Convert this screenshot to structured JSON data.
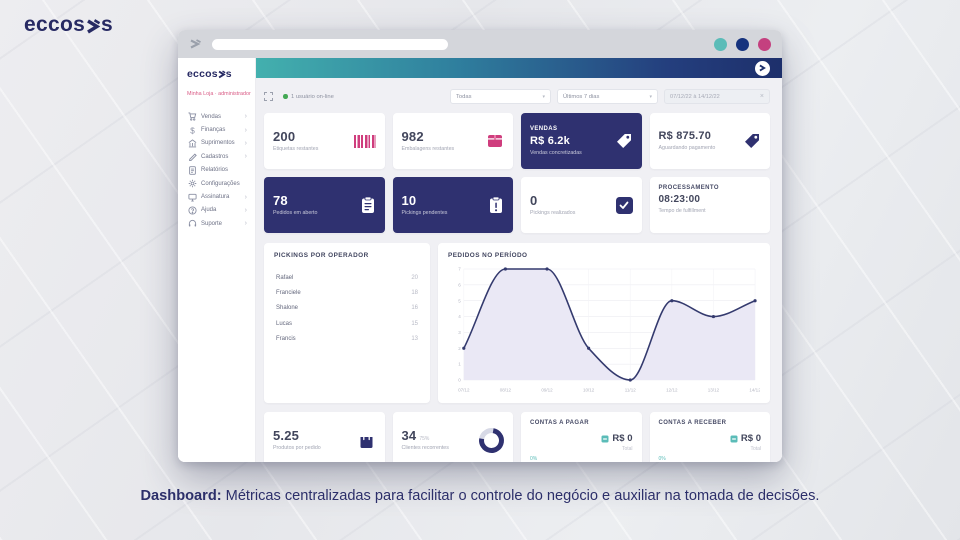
{
  "colors": {
    "navy": "#2f3170",
    "pink": "#cf3d7d",
    "teal": "#5bbcb8",
    "green_online": "#43a854",
    "caption_navy": "#2c2f6a",
    "header_gradient_start": "#43b0ae",
    "header_gradient_end": "#1d2f6b"
  },
  "page": {
    "brand": "eccosys",
    "logo_prefix": "eccos",
    "logo_suffix": "s",
    "caption_bold": "Dashboard:",
    "caption_rest": " Métricas centralizadas para facilitar o controle do negócio e auxiliar na tomada de decisões."
  },
  "browser": {
    "window_controls": [
      "teal",
      "navy",
      "pink"
    ]
  },
  "app": {
    "sidebar": {
      "logo_prefix": "eccos",
      "logo_suffix": "s",
      "account": "Minha Loja · administrador",
      "items": [
        {
          "id": "vendas",
          "label": "Vendas",
          "icon": "cart-icon",
          "chevron": true
        },
        {
          "id": "financas",
          "label": "Finanças",
          "icon": "dollar-icon",
          "chevron": true
        },
        {
          "id": "suprimentos",
          "label": "Suprimentos",
          "icon": "building-icon",
          "chevron": true
        },
        {
          "id": "cadastros",
          "label": "Cadastros",
          "icon": "pencil-icon",
          "chevron": true
        },
        {
          "id": "relatorios",
          "label": "Relatórios",
          "icon": "report-icon",
          "chevron": false
        },
        {
          "id": "configuracoes",
          "label": "Configurações",
          "icon": "gear-icon",
          "chevron": false
        },
        {
          "id": "assinatura",
          "label": "Assinatura",
          "icon": "monitor-icon",
          "chevron": true
        },
        {
          "id": "ajuda",
          "label": "Ajuda",
          "icon": "help-icon",
          "chevron": true
        },
        {
          "id": "suporte",
          "label": "Suporte",
          "icon": "headset-icon",
          "chevron": true
        }
      ]
    },
    "topbar": {
      "online_status": "1 usuário on-line",
      "filters": {
        "store": "Todas",
        "period": "Últimos 7 dias",
        "date_range": "07/12/22 à 14/12/22"
      }
    },
    "cards_row1": [
      {
        "value": "200",
        "label": "Etiquetas restantes"
      },
      {
        "value": "982",
        "label": "Embalagens restantes"
      },
      {
        "title": "VENDAS",
        "value": "R$ 6.2k",
        "label": "Vendas concretizadas"
      },
      {
        "value": "R$ 875.70",
        "label": "Aguardando pagamento"
      }
    ],
    "cards_row2": [
      {
        "value": "78",
        "label": "Pedidos em aberto"
      },
      {
        "value": "10",
        "label": "Pickings pendentes"
      },
      {
        "value": "0",
        "label": "Pickings realizados"
      },
      {
        "title": "PROCESSAMENTO",
        "value": "08:23:00",
        "label": "Tempo de fulfillment"
      }
    ],
    "pickings": {
      "title": "PICKINGS POR OPERADOR",
      "rows": [
        {
          "name": "Rafael",
          "value": "20"
        },
        {
          "name": "Franciele",
          "value": "18"
        },
        {
          "name": "Shalone",
          "value": "16"
        },
        {
          "name": "Lucas",
          "value": "15"
        },
        {
          "name": "Francis",
          "value": "13"
        }
      ]
    },
    "cards_row3": [
      {
        "value": "5.25",
        "label": "Produtos por pedido"
      },
      {
        "value": "34",
        "sub": "75%",
        "label": "Clientes recorrentes"
      },
      {
        "title": "CONTAS A PAGAR",
        "value": "R$ 0",
        "sub": "Total",
        "badge": "0%"
      },
      {
        "title": "CONTAS A RECEBER",
        "value": "R$ 0",
        "sub": "Total",
        "badge": "0%"
      }
    ]
  },
  "chart_data": {
    "type": "area",
    "title": "PEDIDOS NO PERÍODO",
    "x": [
      "07/12",
      "08/12",
      "09/12",
      "10/12",
      "11/12",
      "12/12",
      "13/12",
      "14/12"
    ],
    "series": [
      {
        "name": "Pedidos",
        "values": [
          2,
          7,
          7,
          2,
          0,
          5,
          4,
          5
        ]
      }
    ],
    "ylim": [
      0,
      7
    ],
    "yticks": [
      0,
      1,
      2,
      3,
      4,
      5,
      6,
      7
    ],
    "grid": true,
    "legend": false,
    "line_color": "#343a6e",
    "fill_color": "#eae8f5",
    "point_color": "#343a6e"
  }
}
